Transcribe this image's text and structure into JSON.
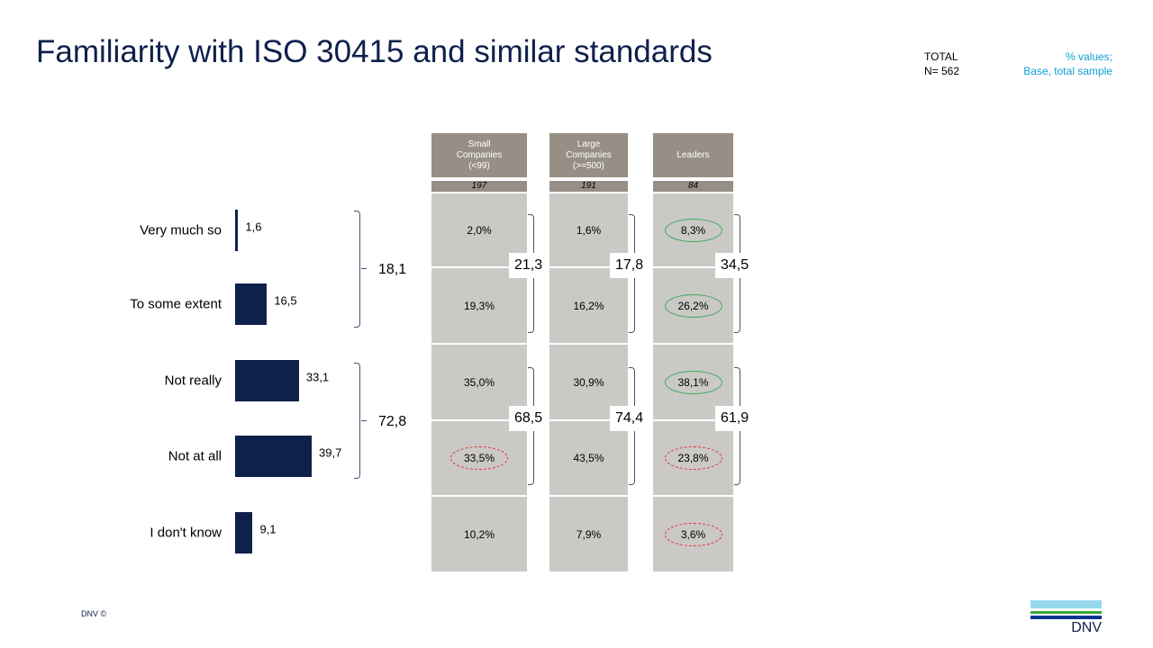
{
  "title": "Familiarity with ISO 30415 and similar standards",
  "total": {
    "line1": "TOTAL",
    "line2": "N= 562"
  },
  "note": {
    "line1": "% values;",
    "line2": "Base, total sample"
  },
  "footer": "DNV ©",
  "logo_text": "DNV",
  "chart_data": {
    "type": "bar",
    "categories": [
      "Very much so",
      "To some extent",
      "Not really",
      "Not at all",
      "I don't know"
    ],
    "values": [
      1.6,
      16.5,
      33.1,
      39.7,
      9.1
    ],
    "value_labels": [
      "1,6",
      "16,5",
      "33,1",
      "39,7",
      "9,1"
    ],
    "groups": [
      {
        "label": "18,1",
        "rows": [
          0,
          1
        ]
      },
      {
        "label": "72,8",
        "rows": [
          2,
          3
        ]
      }
    ],
    "bar_color": "#0f204b",
    "segments": [
      {
        "header": [
          "Small",
          "Companies",
          "(<99)"
        ],
        "n": "197",
        "values": [
          "2,0%",
          "19,3%",
          "35,0%",
          "33,5%",
          "10,2%"
        ],
        "marks": [
          "",
          "",
          "",
          "red",
          ""
        ],
        "groups": [
          "21,3",
          "68,5"
        ]
      },
      {
        "header": [
          "Large",
          "Companies",
          "(>=500)"
        ],
        "n": "191",
        "values": [
          "1,6%",
          "16,2%",
          "30,9%",
          "43,5%",
          "7,9%"
        ],
        "marks": [
          "",
          "",
          "",
          "",
          ""
        ],
        "groups": [
          "17,8",
          "74,4"
        ]
      },
      {
        "header": [
          "Leaders"
        ],
        "n": "84",
        "values": [
          "8,3%",
          "26,2%",
          "38,1%",
          "23,8%",
          "3,6%"
        ],
        "marks": [
          "green",
          "green",
          "green",
          "red",
          "red"
        ],
        "groups": [
          "34,5",
          "61,9"
        ]
      }
    ],
    "mark_colors": {
      "green": "#3aaa5c",
      "red": "#e0303a"
    }
  }
}
